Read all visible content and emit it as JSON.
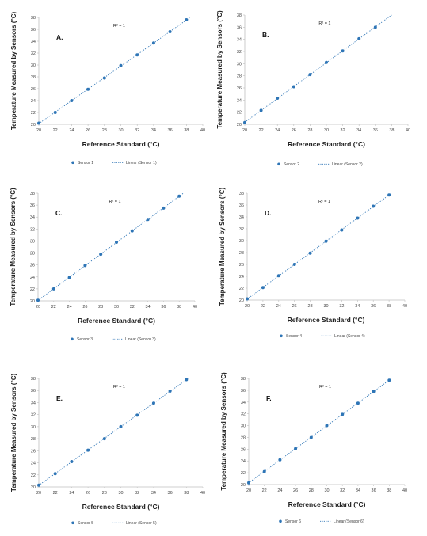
{
  "colors": {
    "marker": "#2e75b6",
    "trend": "#2e75b6",
    "axis": "#bfbfbf"
  },
  "chart_data": [
    {
      "type": "scatter",
      "panel_label": "A.",
      "annotation": "R² = 1",
      "xlabel": "Reference Standard (°C)",
      "ylabel": "Temperature Measured by Sensors (°C)",
      "xlim": [
        20,
        40
      ],
      "ylim": [
        20,
        38
      ],
      "xticks": [
        "20",
        "22",
        "24",
        "26",
        "28",
        "30",
        "32",
        "34",
        "36",
        "38",
        "40"
      ],
      "yticks": [
        "20",
        "22",
        "24",
        "26",
        "28",
        "30",
        "32",
        "34",
        "36",
        "38"
      ],
      "series": [
        {
          "name": "Sensor 1",
          "x": [
            20,
            22,
            24,
            26,
            28,
            30,
            32,
            34,
            36,
            38
          ],
          "y": [
            20.2,
            22.0,
            24.0,
            25.9,
            27.8,
            29.9,
            31.7,
            33.7,
            35.6,
            37.6
          ]
        }
      ],
      "trendline": {
        "name": "Linear (Sensor 1)",
        "style": "dotted"
      },
      "legend": "bottom"
    },
    {
      "type": "scatter",
      "panel_label": "B.",
      "annotation": "R² = 1",
      "xlabel": "Reference Standard (°C)",
      "ylabel": "Temperature Measured by Sensors (°C)",
      "xlim": [
        20,
        40
      ],
      "ylim": [
        20,
        38
      ],
      "xticks": [
        "20",
        "22",
        "24",
        "26",
        "28",
        "30",
        "32",
        "34",
        "36",
        "38",
        "40"
      ],
      "yticks": [
        "20",
        "22",
        "24",
        "26",
        "28",
        "30",
        "32",
        "34",
        "36",
        "38"
      ],
      "series": [
        {
          "name": "Sensor 2",
          "x": [
            20,
            22,
            24,
            26,
            28,
            30,
            32,
            34,
            36
          ],
          "y": [
            20.3,
            22.3,
            24.3,
            26.2,
            28.2,
            30.2,
            32.1,
            34.1,
            36.0
          ]
        }
      ],
      "trendline": {
        "name": "Linear (Sensor 2)",
        "style": "dotted"
      },
      "legend": "bottom"
    },
    {
      "type": "scatter",
      "panel_label": "C.",
      "annotation": "R² = 1",
      "xlabel": "Reference Standard (°C)",
      "ylabel": "Temperature Measured by Sensors (°C)",
      "xlim": [
        20,
        40
      ],
      "ylim": [
        20,
        38
      ],
      "xticks": [
        "20",
        "22",
        "24",
        "26",
        "28",
        "30",
        "32",
        "34",
        "36",
        "38",
        "40"
      ],
      "yticks": [
        "20",
        "22",
        "24",
        "26",
        "28",
        "30",
        "32",
        "34",
        "36",
        "38"
      ],
      "series": [
        {
          "name": "Sensor 3",
          "x": [
            20,
            22,
            24,
            26,
            28,
            30,
            32,
            34,
            36,
            38
          ],
          "y": [
            20.1,
            22.0,
            23.9,
            25.9,
            27.8,
            29.8,
            31.7,
            33.6,
            35.5,
            37.5
          ]
        }
      ],
      "trendline": {
        "name": "Linear (Sensor 3)",
        "style": "dotted"
      },
      "legend": "bottom"
    },
    {
      "type": "scatter",
      "panel_label": "D.",
      "annotation": "R² = 1",
      "xlabel": "Reference Standard (°C)",
      "ylabel": "Temperature Measured by Sensors (°C)",
      "xlim": [
        20,
        40
      ],
      "ylim": [
        20,
        38
      ],
      "xticks": [
        "20",
        "22",
        "24",
        "26",
        "28",
        "30",
        "32",
        "34",
        "36",
        "38",
        "40"
      ],
      "yticks": [
        "20",
        "22",
        "24",
        "26",
        "28",
        "30",
        "32",
        "34",
        "36",
        "38"
      ],
      "series": [
        {
          "name": "Sensor 4",
          "x": [
            20,
            22,
            24,
            26,
            28,
            30,
            32,
            34,
            36,
            38
          ],
          "y": [
            20.2,
            22.1,
            24.1,
            26.0,
            27.9,
            29.9,
            31.8,
            33.8,
            35.8,
            37.7
          ]
        }
      ],
      "trendline": {
        "name": "Linear (Sensor 4)",
        "style": "dotted"
      },
      "legend": "bottom"
    },
    {
      "type": "scatter",
      "panel_label": "E.",
      "annotation": "R² = 1",
      "xlabel": "Reference Standard (°C)",
      "ylabel": "Temperature Measured by Sensors (°C)",
      "xlim": [
        20,
        40
      ],
      "ylim": [
        20,
        38
      ],
      "xticks": [
        "20",
        "22",
        "24",
        "26",
        "28",
        "30",
        "32",
        "34",
        "36",
        "38",
        "40"
      ],
      "yticks": [
        "20",
        "22",
        "24",
        "26",
        "28",
        "30",
        "32",
        "34",
        "36",
        "38"
      ],
      "series": [
        {
          "name": "Sensor 5",
          "x": [
            20,
            22,
            24,
            26,
            28,
            30,
            32,
            34,
            36,
            38
          ],
          "y": [
            20.3,
            22.2,
            24.2,
            26.1,
            28.0,
            30.0,
            31.9,
            33.9,
            35.9,
            37.8
          ]
        }
      ],
      "trendline": {
        "name": "Linear (Sensor 5)",
        "style": "dotted"
      },
      "legend": "bottom"
    },
    {
      "type": "scatter",
      "panel_label": "F.",
      "annotation": "R² = 1",
      "xlabel": "Reference Standard (°C)",
      "ylabel": "Temperature Measured by Sensors (°C)",
      "xlim": [
        20,
        40
      ],
      "ylim": [
        20,
        38
      ],
      "xticks": [
        "20",
        "22",
        "24",
        "26",
        "28",
        "30",
        "32",
        "34",
        "36",
        "38",
        "40"
      ],
      "yticks": [
        "20",
        "22",
        "24",
        "26",
        "28",
        "30",
        "32",
        "34",
        "36",
        "38"
      ],
      "series": [
        {
          "name": "Sensor 6",
          "x": [
            20,
            22,
            24,
            26,
            28,
            30,
            32,
            34,
            36,
            38
          ],
          "y": [
            20.3,
            22.2,
            24.2,
            26.1,
            28.0,
            30.0,
            31.9,
            33.8,
            35.8,
            37.7
          ]
        }
      ],
      "trendline": {
        "name": "Linear (Sensor 6)",
        "style": "dotted"
      },
      "legend": "bottom"
    }
  ]
}
